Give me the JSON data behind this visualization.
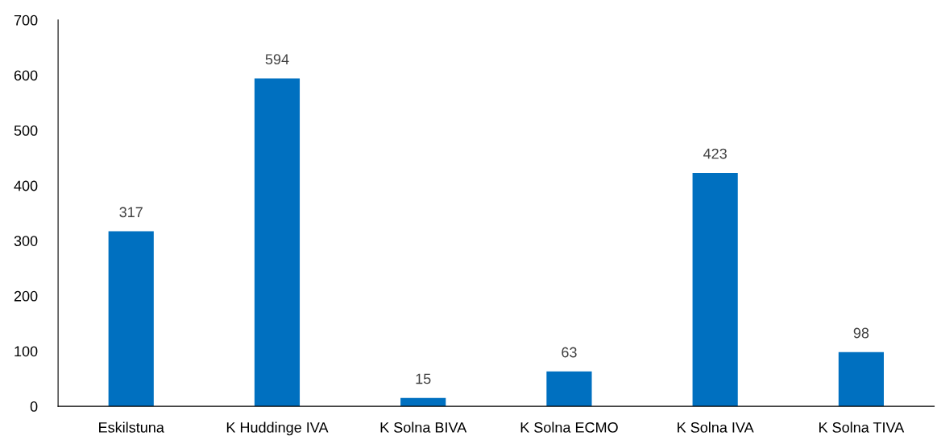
{
  "chart_data": {
    "type": "bar",
    "categories": [
      "Eskilstuna",
      "K Huddinge IVA",
      "K Solna BIVA",
      "K Solna ECMO",
      "K Solna IVA",
      "K Solna TIVA"
    ],
    "values": [
      317,
      594,
      15,
      63,
      423,
      98
    ],
    "color": "#0070c0",
    "ylim": [
      0,
      700
    ],
    "yticks": [
      0,
      100,
      200,
      300,
      400,
      500,
      600,
      700
    ],
    "data_labels": true,
    "grid": false,
    "legend": false
  }
}
